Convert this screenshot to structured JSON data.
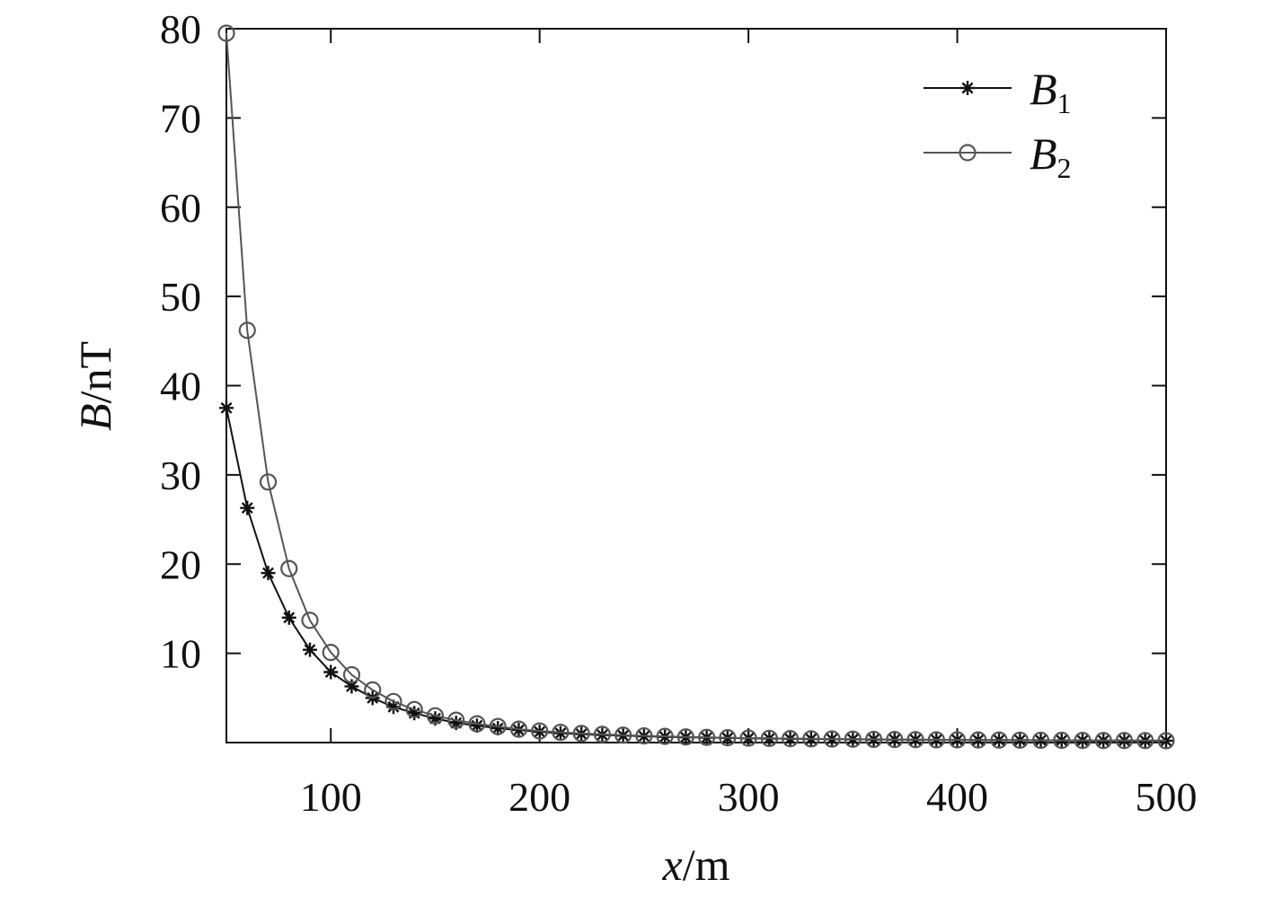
{
  "chart_data": {
    "type": "line",
    "xlabel": {
      "var": "x",
      "unit": "/m"
    },
    "ylabel": {
      "var": "B",
      "unit": "/nT"
    },
    "xlim": [
      50,
      500
    ],
    "ylim": [
      0,
      80
    ],
    "xticks": [
      100,
      200,
      300,
      400,
      500
    ],
    "yticks": [
      10,
      20,
      30,
      40,
      50,
      60,
      70,
      80
    ],
    "grid": false,
    "legend": "top-right",
    "x": [
      50,
      60,
      70,
      80,
      90,
      100,
      110,
      120,
      130,
      140,
      150,
      160,
      170,
      180,
      190,
      200,
      210,
      220,
      230,
      240,
      250,
      260,
      270,
      280,
      290,
      300,
      310,
      320,
      330,
      340,
      350,
      360,
      370,
      380,
      390,
      400,
      410,
      420,
      430,
      440,
      450,
      460,
      470,
      480,
      490,
      500
    ],
    "series": [
      {
        "name": "B",
        "subscript": "1",
        "marker": "star",
        "color": "#111111",
        "values": [
          37.5,
          26.3,
          19.0,
          14.0,
          10.4,
          7.9,
          6.3,
          5.0,
          4.0,
          3.3,
          2.7,
          2.2,
          1.9,
          1.6,
          1.4,
          1.2,
          1.05,
          0.95,
          0.85,
          0.78,
          0.7,
          0.64,
          0.59,
          0.55,
          0.51,
          0.48,
          0.45,
          0.42,
          0.4,
          0.38,
          0.36,
          0.34,
          0.33,
          0.31,
          0.3,
          0.29,
          0.28,
          0.27,
          0.26,
          0.25,
          0.24,
          0.23,
          0.22,
          0.22,
          0.21,
          0.2
        ]
      },
      {
        "name": "B",
        "subscript": "2",
        "marker": "circle",
        "color": "#555555",
        "values": [
          79.5,
          46.2,
          29.2,
          19.5,
          13.7,
          10.1,
          7.6,
          5.9,
          4.6,
          3.7,
          3.0,
          2.5,
          2.1,
          1.8,
          1.5,
          1.3,
          1.15,
          1.02,
          0.92,
          0.83,
          0.75,
          0.69,
          0.63,
          0.58,
          0.54,
          0.5,
          0.47,
          0.44,
          0.42,
          0.4,
          0.38,
          0.36,
          0.34,
          0.33,
          0.31,
          0.3,
          0.29,
          0.28,
          0.27,
          0.26,
          0.25,
          0.24,
          0.23,
          0.23,
          0.22,
          0.21
        ]
      }
    ]
  }
}
